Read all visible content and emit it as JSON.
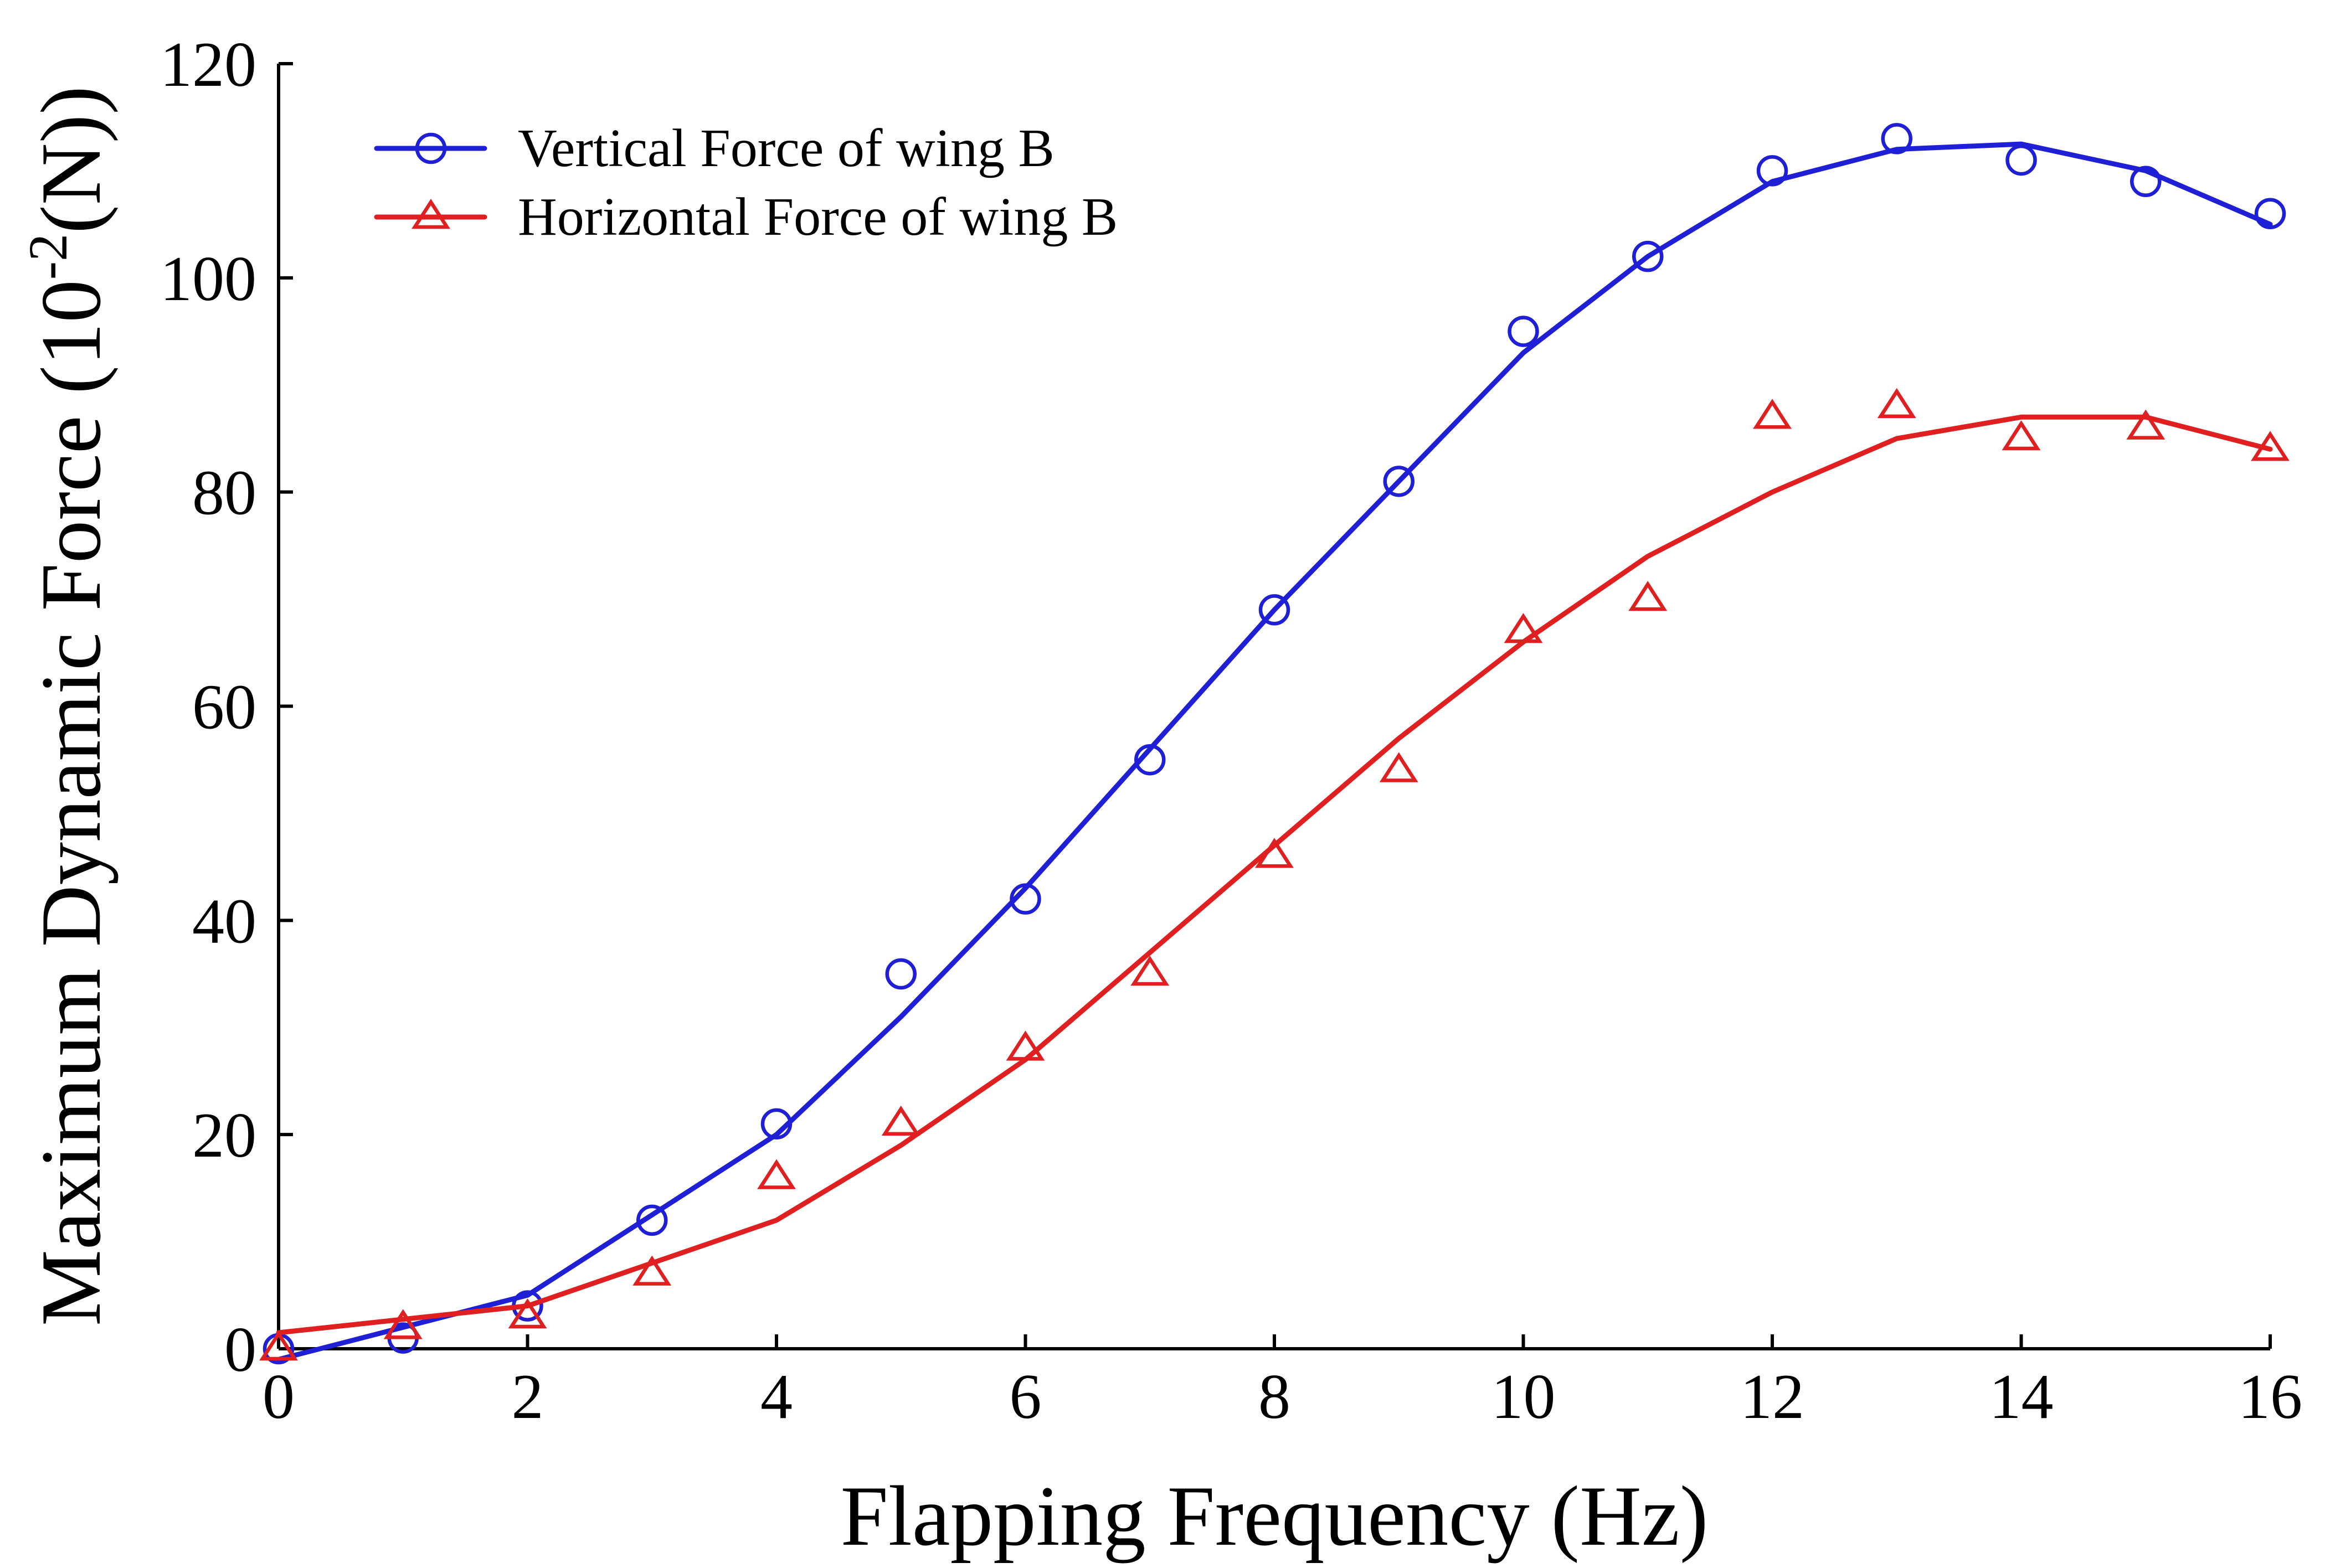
{
  "chart_data": {
    "type": "line",
    "title": "",
    "xlabel": "Flapping Frequency (Hz)",
    "ylabel": {
      "prefix": "Maximum Dynamic Force (10",
      "exponent": "-2",
      "suffix": "(N))"
    },
    "xlim": [
      0,
      16
    ],
    "ylim": [
      0,
      120
    ],
    "xticks": [
      0,
      2,
      4,
      6,
      8,
      10,
      12,
      14,
      16
    ],
    "xtick_labels": [
      "0",
      "2",
      "4",
      "6",
      "8",
      "10",
      "12",
      "14",
      "16"
    ],
    "yticks": [
      0,
      20,
      40,
      60,
      80,
      100,
      120
    ],
    "ytick_labels": [
      "0",
      "20",
      "40",
      "60",
      "80",
      "100",
      "120"
    ],
    "legend_position": "top-left",
    "series": [
      {
        "name": "Vertical Force of wing B",
        "color": "#1f1fd6",
        "marker": "circle",
        "x": [
          0,
          1,
          2,
          3,
          4,
          5,
          6,
          7,
          8,
          9,
          10,
          11,
          12,
          13,
          14,
          15,
          16
        ],
        "values": [
          0,
          1,
          4,
          12,
          21,
          35,
          42,
          55,
          69,
          81,
          95,
          102,
          110,
          113,
          111,
          109,
          106
        ],
        "fit_x": [
          0,
          2,
          4,
          5,
          6,
          7,
          8,
          9,
          10,
          11,
          12,
          13,
          14,
          15,
          16
        ],
        "fit_values": [
          -1,
          5,
          20,
          31,
          43,
          56,
          69,
          81,
          93,
          102,
          109,
          112,
          112.5,
          110,
          105
        ]
      },
      {
        "name": "Horizontal Force of wing B",
        "color": "#e02020",
        "marker": "triangle",
        "x": [
          0,
          1,
          2,
          3,
          4,
          5,
          6,
          7,
          8,
          9,
          10,
          11,
          12,
          13,
          14,
          15,
          16
        ],
        "values": [
          0,
          2,
          3,
          7,
          16,
          21,
          28,
          35,
          46,
          54,
          67,
          70,
          87,
          88,
          85,
          86,
          84
        ],
        "fit_x": [
          0,
          2,
          4,
          5,
          6,
          7,
          8,
          9,
          10,
          11,
          12,
          13,
          14,
          15,
          16
        ],
        "fit_values": [
          1.5,
          4,
          12,
          19,
          27,
          37,
          47,
          57,
          66,
          74,
          80,
          85,
          87,
          87,
          84
        ]
      }
    ]
  }
}
